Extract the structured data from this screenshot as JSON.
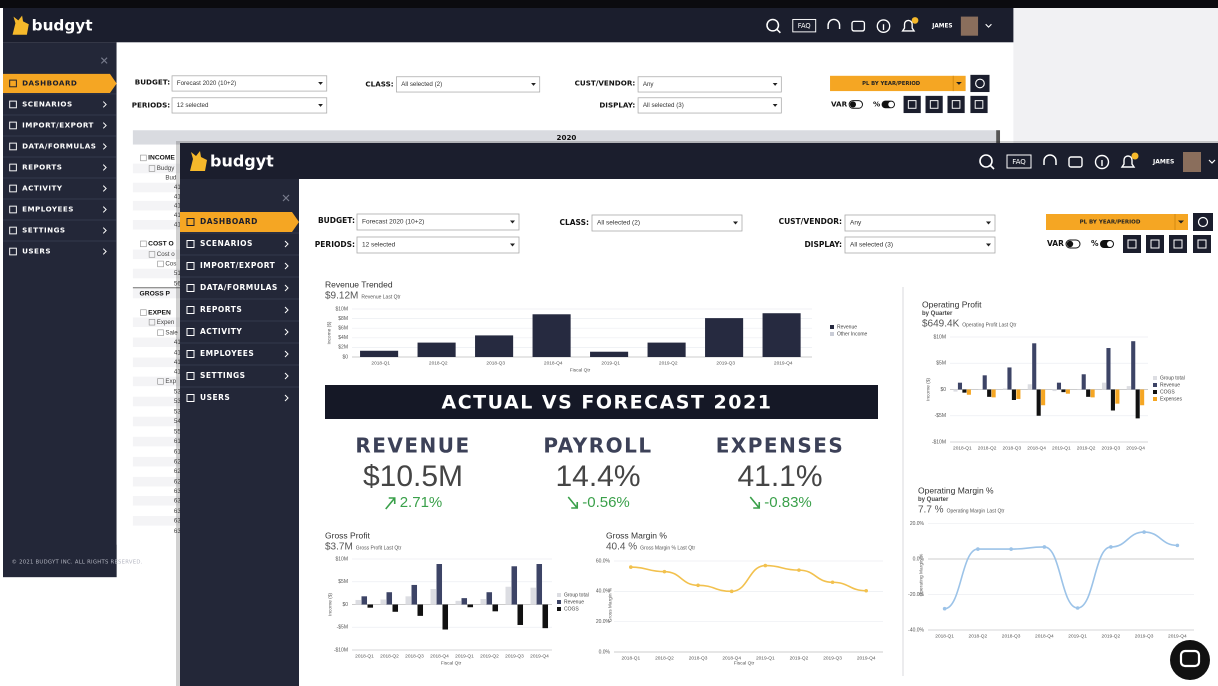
{
  "back_window": {
    "brand": "budgyt",
    "top_bar": {
      "faq": "FAQ",
      "user": "JAMES"
    },
    "menu": [
      "DASHBOARD",
      "SCENARIOS",
      "IMPORT/EXPORT",
      "DATA/FORMULAS",
      "REPORTS",
      "ACTIVITY",
      "EMPLOYEES",
      "SETTINGS",
      "USERS"
    ],
    "filters": {
      "budget_label": "BUDGET:",
      "budget": "Forecast 2020 (10+2)",
      "class_label": "CLASS:",
      "class": "All selected (2)",
      "cust_label": "CUST/VENDOR:",
      "cust": "Any",
      "periods_label": "PERIODS:",
      "periods": "12 selected",
      "display_label": "DISPLAY:",
      "display": "All selected (3)",
      "report": "PL BY YEAR/PERIOD",
      "var": "VAR",
      "pct": "%"
    },
    "table": {
      "year": "2020",
      "rows": [
        "INCOME",
        "Budgy",
        "Bud",
        "41",
        "41",
        "41",
        "41",
        "41",
        "COST O",
        "Cost o",
        "Cos",
        "51",
        "56",
        "GROSS P",
        "EXPEN",
        "Expen",
        "Sale",
        "41",
        "41",
        "41",
        "41",
        "Exp",
        "53",
        "53",
        "53",
        "54",
        "55",
        "61",
        "61",
        "62",
        "62",
        "62",
        "63",
        "63",
        "63",
        "63",
        "63"
      ]
    },
    "footer": "© 2021 BUDGYT INC. ALL RIGHTS RESERVED."
  },
  "front_window": {
    "brand": "budgyt",
    "top_bar": {
      "faq": "FAQ",
      "user": "JAMES"
    },
    "menu": [
      "DASHBOARD",
      "SCENARIOS",
      "IMPORT/EXPORT",
      "DATA/FORMULAS",
      "REPORTS",
      "ACTIVITY",
      "EMPLOYEES",
      "SETTINGS",
      "USERS"
    ],
    "filters": {
      "budget_label": "BUDGET:",
      "budget": "Forecast 2020 (10+2)",
      "class_label": "CLASS:",
      "class": "All selected (2)",
      "cust_label": "CUST/VENDOR:",
      "cust": "Any",
      "periods_label": "PERIODS:",
      "periods": "12 selected",
      "display_label": "DISPLAY:",
      "display": "All selected (3)",
      "report": "PL BY YEAR/PERIOD",
      "var": "VAR",
      "pct": "%"
    },
    "kpi": {
      "banner": "ACTUAL VS FORECAST 2021",
      "items": [
        {
          "label": "REVENUE",
          "value": "$10.5M",
          "change": "2.71%"
        },
        {
          "label": "PAYROLL",
          "value": "14.4%",
          "change": "-0.56%"
        },
        {
          "label": "EXPENSES",
          "value": "41.1%",
          "change": "-0.83%"
        }
      ]
    }
  },
  "chart_data": [
    {
      "type": "bar",
      "title": "Revenue Trended",
      "headline": "$9.12M",
      "headline_note": "Revenue Last Qtr",
      "y_label": "Income ($)",
      "x_label": "Fiscal Qtr",
      "categories": [
        "2018-Q1",
        "2018-Q2",
        "2018-Q3",
        "2018-Q4",
        "2019-Q1",
        "2019-Q2",
        "2019-Q3",
        "2019-Q4"
      ],
      "series": [
        {
          "name": "Revenue",
          "color": "#262a40",
          "values": [
            1300000,
            3000000,
            4500000,
            8900000,
            1100000,
            3000000,
            8100000,
            9120000
          ]
        },
        {
          "name": "Other Income",
          "color": "#c9ccd6",
          "values": [
            null,
            null,
            null,
            null,
            null,
            null,
            null,
            null
          ]
        }
      ],
      "ylim": [
        0,
        10000000
      ],
      "yticks": [
        {
          "value": 0,
          "label": "$0"
        },
        {
          "value": 2000000,
          "label": "$2M"
        },
        {
          "value": 4000000,
          "label": "$4M"
        },
        {
          "value": 6000000,
          "label": "$6M"
        },
        {
          "value": 8000000,
          "label": "$8M"
        },
        {
          "value": 10000000,
          "label": "$10M"
        }
      ],
      "grid": true,
      "legend": "right"
    },
    {
      "type": "bar",
      "title": "Operating Profit",
      "subtitle": "by Quarter",
      "headline": "$649.4K",
      "headline_note": "Operating Profit Last Qtr",
      "y_label": "Income ($)",
      "categories": [
        "2018-Q1",
        "2018-Q2",
        "2018-Q3",
        "2018-Q4",
        "2019-Q1",
        "2019-Q2",
        "2019-Q3",
        "2019-Q4"
      ],
      "series": [
        {
          "name": "Group total",
          "color": "#dcdde2",
          "values": [
            -400000,
            -100000,
            200000,
            1000000,
            -300000,
            -100000,
            1300000,
            649400
          ]
        },
        {
          "name": "Revenue",
          "color": "#3d4466",
          "values": [
            1300000,
            2700000,
            4200000,
            8800000,
            1300000,
            2900000,
            7900000,
            9200000
          ]
        },
        {
          "name": "COGS",
          "color": "#111111",
          "values": [
            -600000,
            -1400000,
            -2000000,
            -5000000,
            -500000,
            -1400000,
            -4000000,
            -5500000
          ]
        },
        {
          "name": "Expenses",
          "color": "#f5a623",
          "values": [
            -1000000,
            -1500000,
            -1800000,
            -3000000,
            -800000,
            -1500000,
            -2700000,
            -3000000
          ]
        }
      ],
      "ylim": [
        -10000000,
        10000000
      ],
      "yticks": [
        {
          "value": -10000000,
          "label": "-$10M"
        },
        {
          "value": -5000000,
          "label": "-$5M"
        },
        {
          "value": 0,
          "label": "$0"
        },
        {
          "value": 5000000,
          "label": "$5M"
        },
        {
          "value": 10000000,
          "label": "$10M"
        }
      ],
      "grid": true,
      "legend": "right"
    },
    {
      "type": "bar",
      "title": "Gross Profit",
      "headline": "$3.7M",
      "headline_note": "Gross Profit Last Qtr",
      "y_label": "Income ($)",
      "x_label": "Fiscal Qtr",
      "categories": [
        "2018-Q1",
        "2018-Q2",
        "2018-Q3",
        "2018-Q4",
        "2019-Q1",
        "2019-Q2",
        "2019-Q3",
        "2019-Q4"
      ],
      "series": [
        {
          "name": "Group total",
          "color": "#dcdde2",
          "values": [
            1000000,
            1100000,
            1800000,
            3400000,
            800000,
            1200000,
            3900000,
            3700000
          ]
        },
        {
          "name": "Revenue",
          "color": "#3d4466",
          "values": [
            1800000,
            2700000,
            4300000,
            8900000,
            1400000,
            2700000,
            8400000,
            8900000
          ]
        },
        {
          "name": "COGS",
          "color": "#111111",
          "values": [
            -700000,
            -1600000,
            -2500000,
            -5500000,
            -600000,
            -1500000,
            -4500000,
            -5200000
          ]
        }
      ],
      "ylim": [
        -10000000,
        10000000
      ],
      "yticks": [
        {
          "value": -10000000,
          "label": "-$10M"
        },
        {
          "value": -5000000,
          "label": "-$5M"
        },
        {
          "value": 0,
          "label": "$0"
        },
        {
          "value": 5000000,
          "label": "$5M"
        },
        {
          "value": 10000000,
          "label": "$10M"
        }
      ],
      "grid": true,
      "legend": "right"
    },
    {
      "type": "line",
      "title": "Gross Margin %",
      "headline": "40.4 %",
      "headline_note": "Gross Margin % Last Qtr",
      "y_label": "Gross Margin %",
      "x_label": "Fiscal Qtr",
      "categories": [
        "2018-Q1",
        "2018-Q2",
        "2018-Q3",
        "2018-Q4",
        "2019-Q1",
        "2019-Q2",
        "2019-Q3",
        "2019-Q4"
      ],
      "series": [
        {
          "color": "#f2c14e",
          "values": [
            56,
            53,
            44,
            40,
            57,
            54,
            46,
            40.4
          ]
        }
      ],
      "ylim": [
        0,
        62
      ],
      "yticks": [
        {
          "value": 0,
          "label": "0.0%"
        },
        {
          "value": 20,
          "label": "20.0%"
        },
        {
          "value": 40,
          "label": "40.0%"
        },
        {
          "value": 60,
          "label": "60.0%"
        }
      ],
      "grid": true
    },
    {
      "type": "line",
      "title": "Operating Margin %",
      "subtitle": "by Quarter",
      "headline": "7.7 %",
      "headline_note": "Operating Margin Last Qtr",
      "y_label": "Operating Margin %",
      "categories": [
        "2018-Q1",
        "2018-Q2",
        "2018-Q3",
        "2018-Q4",
        "2019-Q1",
        "2019-Q2",
        "2019-Q3",
        "2019-Q4"
      ],
      "series": [
        {
          "color": "#9cc3e8",
          "values": [
            -28,
            5.6,
            5.6,
            6.8,
            -27.6,
            6.8,
            15.2,
            7.7
          ]
        }
      ],
      "ylim": [
        -40,
        22
      ],
      "yticks": [
        {
          "value": -40,
          "label": "-40.0%"
        },
        {
          "value": -20,
          "label": "-20.0%"
        },
        {
          "value": 0,
          "label": "0.0%"
        },
        {
          "value": 20,
          "label": "20.0%"
        }
      ],
      "grid": true
    }
  ]
}
